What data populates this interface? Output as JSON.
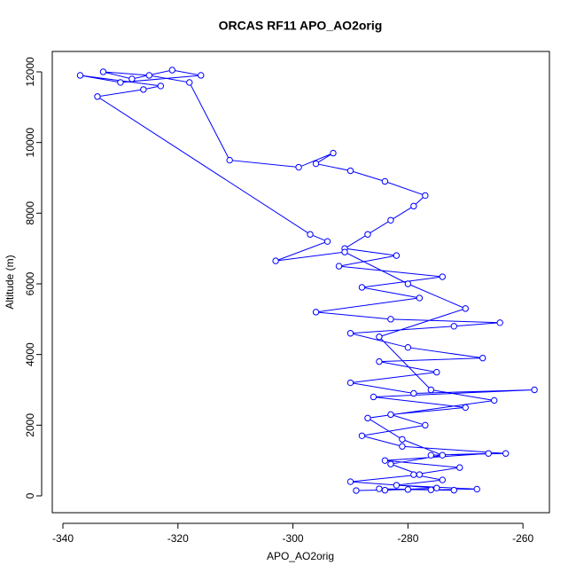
{
  "chart_data": {
    "type": "scatter",
    "title": "ORCAS RF11 APO_AO2orig",
    "x_label": "APO_AO2orig",
    "y_label": "Altitude (m)",
    "xlim": [
      -341.85,
      -255.4
    ],
    "ylim": [
      -477,
      12577
    ],
    "xticks": [
      -340,
      -320,
      -300,
      -280,
      -260
    ],
    "yticks": [
      0,
      2000,
      4000,
      6000,
      8000,
      10000,
      12000
    ],
    "series": [
      {
        "color": "#0000ff",
        "x": [
          -289,
          -280,
          -272,
          -285,
          -276,
          -268,
          -282,
          -274,
          -279,
          -271,
          -284,
          -266,
          -276,
          -263,
          -281,
          -288,
          -277,
          -283,
          -270,
          -286,
          -258,
          -279,
          -290,
          -275,
          -285,
          -267,
          -280,
          -290,
          -272,
          -264,
          -283,
          -296,
          -278,
          -288,
          -274,
          -292,
          -282,
          -291,
          -287,
          -283,
          -279,
          -277,
          -284,
          -290,
          -296,
          -293,
          -299,
          -311,
          -318,
          -325,
          -333,
          -328,
          -321,
          -316,
          -330,
          -337,
          -323,
          -326,
          -334,
          -297,
          -294,
          -303,
          -291,
          -280,
          -270,
          -285,
          -276,
          -265,
          -287,
          -281,
          -274,
          -283,
          -278,
          -290,
          -275,
          -284
        ],
        "y": [
          150,
          180,
          160,
          200,
          170,
          190,
          300,
          450,
          600,
          800,
          1000,
          1200,
          1150,
          1200,
          1400,
          1700,
          2000,
          2300,
          2500,
          2800,
          3000,
          2900,
          3200,
          3500,
          3800,
          3900,
          4200,
          4600,
          4800,
          4900,
          5000,
          5200,
          5600,
          5900,
          6200,
          6500,
          6800,
          7000,
          7400,
          7800,
          8200,
          8500,
          8900,
          9200,
          9400,
          9700,
          9300,
          9500,
          11700,
          11900,
          12000,
          11800,
          12050,
          11900,
          11700,
          11900,
          11600,
          11500,
          11300,
          7400,
          7200,
          6650,
          6900,
          6000,
          5300,
          4500,
          3000,
          2700,
          2200,
          1600,
          1150,
          900,
          600,
          400,
          220,
          160
        ]
      }
    ]
  }
}
